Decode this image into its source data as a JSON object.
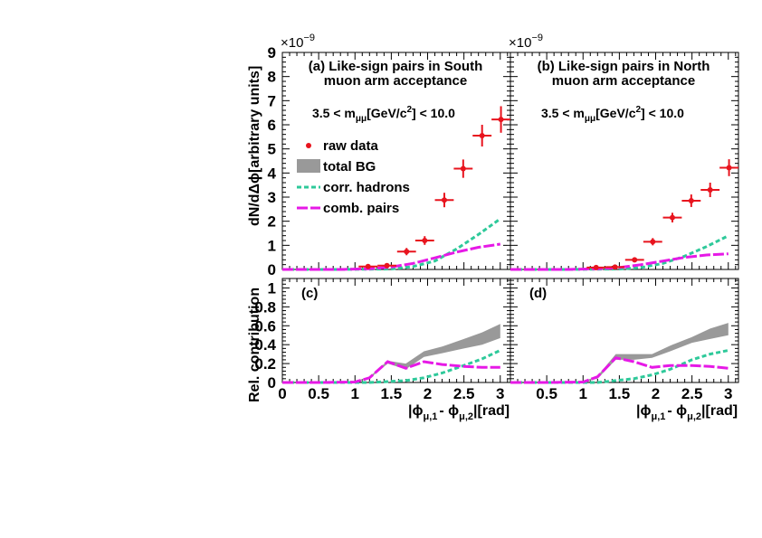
{
  "colors": {
    "raw_data": "#e8141e",
    "total_bg": "#999999",
    "corr_hadrons": "#2ec99a",
    "comb_pairs": "#e619e6"
  },
  "axes": {
    "top_ylabel": "dN/dΔϕ[arbitrary units]",
    "bottom_ylabel": "Rel. contribution",
    "exponent_label": "×10",
    "exponent_power": "−9",
    "xlabel_parts": {
      "bar1": "|ϕ",
      "sub1": "μ,1",
      "mid": "- ϕ",
      "sub2": "μ,2",
      "bar2": "|[rad]"
    },
    "left_x_ticks": [
      "0",
      "0.5",
      "1",
      "1.5",
      "2",
      "2.5",
      "3"
    ],
    "right_x_ticks": [
      "0.5",
      "1",
      "1.5",
      "2",
      "2.5",
      "3"
    ],
    "top_y_ticks": [
      "0",
      "1",
      "2",
      "3",
      "4",
      "5",
      "6",
      "7",
      "8",
      "9"
    ],
    "bottom_y_ticks": [
      "0",
      "0.2",
      "0.4",
      "0.6",
      "0.8",
      "1"
    ]
  },
  "legend": {
    "raw": "raw data",
    "bg": "total BG",
    "hadrons": "corr. hadrons",
    "pairs": "comb. pairs"
  },
  "panels": {
    "a": {
      "line1": "(a) Like-sign pairs in South",
      "line2": "muon arm acceptance"
    },
    "b": {
      "line1": "(b) Like-sign pairs in North",
      "line2": "muon arm acceptance"
    },
    "c": {
      "label": "(c)"
    },
    "d": {
      "label": "(d)"
    },
    "mass_parts": {
      "pre": "3.5 < m",
      "sub": "μμ",
      "mid": "[GeV/c",
      "sup": "2",
      "post": "] < 10.0"
    }
  },
  "chart_data": [
    {
      "panel": "a",
      "type": "scatter",
      "xlim": [
        0,
        3.14
      ],
      "ylim": [
        0,
        9
      ],
      "y_scale_factor": "1e-9",
      "series": [
        {
          "name": "raw data",
          "x": [
            1.18,
            1.44,
            1.71,
            1.96,
            2.23,
            2.49,
            2.75,
            3.01
          ],
          "y": [
            0.12,
            0.16,
            0.74,
            1.2,
            2.88,
            4.18,
            5.55,
            6.22
          ],
          "yerr": [
            0.08,
            0.1,
            0.15,
            0.18,
            0.3,
            0.38,
            0.45,
            0.55
          ],
          "xerr": 0.13
        },
        {
          "name": "corr. hadrons",
          "x": [
            0,
            0.8,
            1.2,
            1.5,
            1.8,
            2.1,
            2.4,
            2.7,
            3.0
          ],
          "y": [
            0,
            0,
            0.01,
            0.02,
            0.12,
            0.35,
            0.85,
            1.45,
            2.1
          ]
        },
        {
          "name": "comb. pairs",
          "x": [
            0,
            0.8,
            1.2,
            1.5,
            1.8,
            2.1,
            2.4,
            2.7,
            3.0
          ],
          "y": [
            0,
            0,
            0.03,
            0.1,
            0.25,
            0.48,
            0.72,
            0.92,
            1.05
          ]
        }
      ]
    },
    {
      "panel": "b",
      "type": "scatter",
      "xlim": [
        0,
        3.14
      ],
      "ylim": [
        0,
        9
      ],
      "y_scale_factor": "1e-9",
      "series": [
        {
          "name": "raw data",
          "x": [
            1.18,
            1.44,
            1.71,
            1.96,
            2.23,
            2.49,
            2.75,
            3.01
          ],
          "y": [
            0.08,
            0.1,
            0.4,
            1.15,
            2.15,
            2.85,
            3.3,
            4.22
          ],
          "yerr": [
            0.06,
            0.07,
            0.1,
            0.15,
            0.2,
            0.26,
            0.3,
            0.35
          ],
          "xerr": 0.13
        },
        {
          "name": "corr. hadrons",
          "x": [
            0,
            0.8,
            1.2,
            1.5,
            1.8,
            2.1,
            2.4,
            2.7,
            3.0
          ],
          "y": [
            0,
            0,
            0.01,
            0.02,
            0.08,
            0.25,
            0.55,
            0.95,
            1.4
          ]
        },
        {
          "name": "comb. pairs",
          "x": [
            0,
            0.8,
            1.2,
            1.5,
            1.8,
            2.1,
            2.4,
            2.7,
            3.0
          ],
          "y": [
            0,
            0,
            0.03,
            0.08,
            0.2,
            0.35,
            0.5,
            0.6,
            0.65
          ]
        }
      ]
    },
    {
      "panel": "c",
      "type": "area",
      "xlim": [
        0,
        3.14
      ],
      "ylim": [
        0,
        1.1
      ],
      "series": [
        {
          "name": "total BG",
          "x": [
            0,
            0.5,
            1.0,
            1.2,
            1.45,
            1.7,
            1.95,
            2.2,
            2.5,
            2.75,
            3.0
          ],
          "y_low": [
            0,
            0,
            0.005,
            0.04,
            0.2,
            0.14,
            0.27,
            0.31,
            0.36,
            0.4,
            0.47
          ],
          "y_high": [
            0,
            0,
            0.01,
            0.06,
            0.23,
            0.2,
            0.33,
            0.38,
            0.46,
            0.53,
            0.62
          ]
        },
        {
          "name": "corr. hadrons",
          "x": [
            0,
            0.5,
            1.0,
            1.2,
            1.45,
            1.7,
            1.95,
            2.2,
            2.5,
            2.75,
            3.0
          ],
          "y": [
            0,
            0,
            0,
            0,
            0.01,
            0.02,
            0.05,
            0.1,
            0.18,
            0.25,
            0.34
          ]
        },
        {
          "name": "comb. pairs",
          "x": [
            0,
            0.5,
            1.0,
            1.2,
            1.45,
            1.7,
            1.95,
            2.2,
            2.5,
            2.75,
            3.0
          ],
          "y": [
            0,
            0,
            0.005,
            0.05,
            0.22,
            0.15,
            0.22,
            0.19,
            0.17,
            0.16,
            0.16
          ]
        }
      ]
    },
    {
      "panel": "d",
      "type": "area",
      "xlim": [
        0,
        3.14
      ],
      "ylim": [
        0,
        1.1
      ],
      "series": [
        {
          "name": "total BG",
          "x": [
            0,
            0.5,
            1.0,
            1.2,
            1.45,
            1.7,
            1.95,
            2.2,
            2.5,
            2.75,
            3.0
          ],
          "y_low": [
            0,
            0,
            0.005,
            0.04,
            0.24,
            0.24,
            0.26,
            0.33,
            0.42,
            0.46,
            0.5
          ],
          "y_high": [
            0,
            0,
            0.01,
            0.07,
            0.3,
            0.3,
            0.3,
            0.39,
            0.48,
            0.57,
            0.63
          ]
        },
        {
          "name": "corr. hadrons",
          "x": [
            0,
            0.5,
            1.0,
            1.2,
            1.45,
            1.7,
            1.95,
            2.2,
            2.5,
            2.75,
            3.0
          ],
          "y": [
            0,
            0,
            0,
            0,
            0.02,
            0.04,
            0.08,
            0.14,
            0.24,
            0.3,
            0.34
          ]
        },
        {
          "name": "comb. pairs",
          "x": [
            0,
            0.5,
            1.0,
            1.2,
            1.45,
            1.7,
            1.95,
            2.2,
            2.5,
            2.75,
            3.0
          ],
          "y": [
            0,
            0,
            0.005,
            0.06,
            0.26,
            0.22,
            0.16,
            0.18,
            0.18,
            0.17,
            0.15
          ]
        }
      ]
    }
  ]
}
